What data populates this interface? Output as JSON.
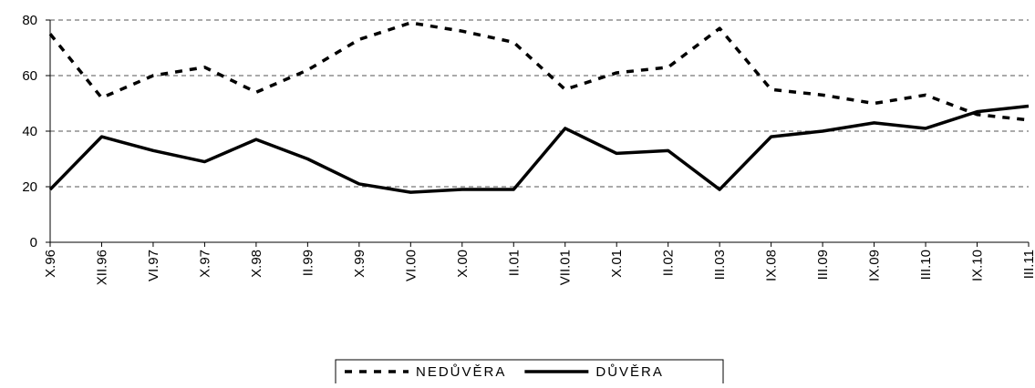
{
  "chart_data": {
    "type": "line",
    "categories": [
      "X.96",
      "XII.96",
      "VI.97",
      "X.97",
      "X.98",
      "II.99",
      "X.99",
      "VI.00",
      "X.00",
      "II.01",
      "VII.01",
      "X.01",
      "II.02",
      "III.03",
      "IX.08",
      "III.09",
      "IX.09",
      "III.10",
      "IX.10",
      "III.11"
    ],
    "series": [
      {
        "name": "NEDŮVĚRA",
        "color": "#000000",
        "dash": true,
        "values": [
          75,
          52,
          60,
          63,
          54,
          62,
          73,
          79,
          76,
          72,
          55,
          61,
          63,
          77,
          55,
          53,
          50,
          53,
          46,
          44
        ]
      },
      {
        "name": "DŮVĚRA",
        "color": "#000000",
        "dash": false,
        "values": [
          19,
          38,
          33,
          29,
          37,
          30,
          21,
          18,
          19,
          19,
          41,
          32,
          33,
          19,
          38,
          40,
          43,
          41,
          47,
          49
        ]
      }
    ],
    "ylim": [
      0,
      80
    ],
    "yticks": [
      0,
      20,
      40,
      60,
      80
    ],
    "grid": true,
    "legend": "bottom"
  }
}
